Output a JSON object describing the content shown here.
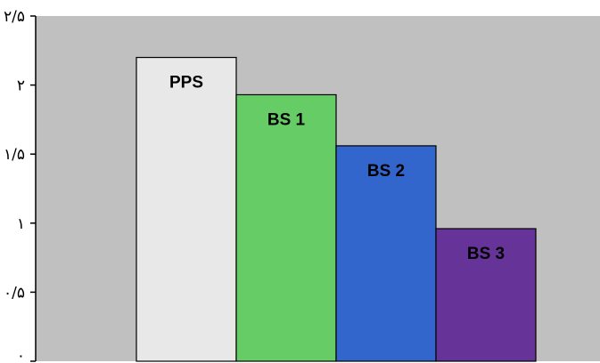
{
  "chart_data": {
    "type": "bar",
    "categories": [
      "PPS",
      "BS 1",
      "BS 2",
      "BS 3"
    ],
    "values": [
      2.2,
      1.93,
      1.56,
      0.96
    ],
    "colors": [
      "#e8e8e8",
      "#66cc66",
      "#3366cc",
      "#663399"
    ],
    "bar_labels": [
      "PPS",
      "BS 1",
      "BS 2",
      "BS 3"
    ],
    "ylim": [
      0,
      2.5
    ],
    "yticks": [
      0,
      0.5,
      1,
      1.5,
      2,
      2.5
    ],
    "ytick_labels": [
      "٠",
      "٠/۵",
      "١",
      "١/۵",
      "٢",
      "٢/۵"
    ],
    "plot_background": "#c0c0c0",
    "bar_gap": "none",
    "grid": false,
    "legend": "none",
    "title": "",
    "xlabel": "",
    "ylabel": ""
  }
}
